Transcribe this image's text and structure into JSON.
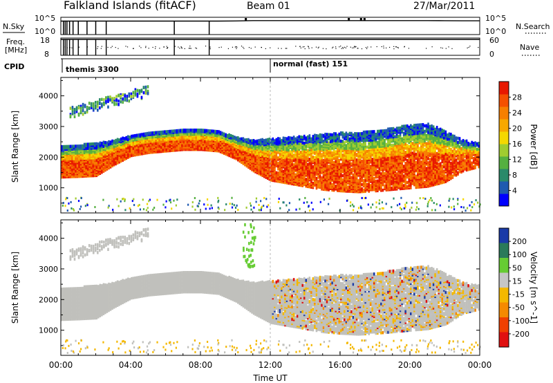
{
  "header": {
    "station": "Falkland Islands (fitACF)",
    "beam": "Beam 01",
    "date": "27/Mar/2011"
  },
  "chart_data": [
    {
      "type": "line",
      "panel": "noise",
      "left_label": "N.Sky",
      "right_label": "N.Search",
      "left_ticks": [
        "10^5",
        "10^0"
      ],
      "right_ticks": [
        "10^5",
        "10^0"
      ],
      "x": [
        0,
        1,
        2,
        3,
        4,
        5,
        6,
        7,
        8,
        9,
        10,
        11,
        12,
        13,
        14,
        15,
        16,
        17,
        18,
        19,
        20,
        21,
        22,
        23,
        24
      ],
      "y_log": [
        4.6,
        4.6,
        4.6,
        4.6,
        4.6,
        4.6,
        4.6,
        4.6,
        4.6,
        4.6,
        4.65,
        4.8,
        4.8,
        4.8,
        4.8,
        4.8,
        4.8,
        4.8,
        4.8,
        4.8,
        4.8,
        4.8,
        4.75,
        4.7,
        4.7
      ],
      "dips_hours": [
        0.15,
        0.25,
        0.35,
        0.5,
        0.7,
        1.0,
        1.5,
        2.0,
        2.6,
        6.5,
        8.5
      ],
      "bumps_hours": [
        10.6,
        16.5,
        17.2,
        17.4
      ],
      "ylim_log": [
        0,
        5
      ]
    },
    {
      "type": "scatter",
      "panel": "frequency",
      "left_label_lines": [
        "Freq.",
        "[MHz]"
      ],
      "right_label": "Nave",
      "left_ticks": [
        "18",
        "8"
      ],
      "right_ticks": [
        "60",
        "0"
      ],
      "freq_mhz": 18,
      "freq_dips_hours": [
        0.15,
        0.25,
        0.35,
        0.5,
        0.7,
        1.0,
        1.5,
        2.0,
        2.6,
        6.5,
        8.5
      ],
      "nave_ylim": [
        0,
        60
      ]
    },
    {
      "type": "table",
      "panel": "cpid",
      "label": "CPID",
      "segments": [
        {
          "start_hour": 0.0,
          "label": "themis 3300"
        },
        {
          "start_hour": 12.0,
          "label": "normal (fast) 151"
        }
      ]
    },
    {
      "type": "heatmap",
      "panel": "power",
      "ylabel": "Slant Range [km]",
      "xlabel": "",
      "yticks": [
        1000,
        2000,
        3000,
        4000
      ],
      "ylim": [
        180,
        4600
      ],
      "colorbar_label": "Power [dB]",
      "colorbar_ticks": [
        4,
        8,
        12,
        16,
        20,
        24,
        28
      ],
      "colorbar_colors": [
        "#0000ff",
        "#1f5ab0",
        "#2a8a6a",
        "#55b040",
        "#a0cc30",
        "#f5d800",
        "#f7a800",
        "#f77f00",
        "#f55000",
        "#e81800"
      ],
      "band_lower_km": [
        1300,
        1320,
        1350,
        1700,
        2000,
        2100,
        2150,
        2200,
        2200,
        2150,
        1900,
        1500,
        1200,
        1100,
        1000,
        900,
        850,
        820,
        850,
        900,
        950,
        1000,
        1150,
        1500,
        1650
      ],
      "band_upper_km": [
        2300,
        2350,
        2400,
        2500,
        2650,
        2750,
        2800,
        2850,
        2850,
        2800,
        2600,
        2500,
        2550,
        2600,
        2650,
        2700,
        2750,
        2750,
        2800,
        2900,
        3000,
        3050,
        2800,
        2500,
        2400
      ],
      "upper_echoes": [
        {
          "start_hour": 0.5,
          "end_hour": 5.0,
          "start_km": 3400,
          "end_km": 4100
        }
      ]
    },
    {
      "type": "heatmap",
      "panel": "velocity",
      "ylabel": "Slant Range [km]",
      "xlabel": "Time UT",
      "xticks": [
        "00:00",
        "04:00",
        "08:00",
        "12:00",
        "16:00",
        "20:00",
        "00:00"
      ],
      "yticks": [
        1000,
        2000,
        3000,
        4000
      ],
      "ylim": [
        180,
        4600
      ],
      "colorbar_label": "Velocity [m s^-1]",
      "colorbar_ticks": [
        200,
        100,
        50,
        15,
        -15,
        -50,
        -100,
        -200
      ],
      "colorbar_colors": [
        "#1a3aa8",
        "#2a7a5a",
        "#66cc33",
        "#c6c6c6",
        "#f4b800",
        "#f58a00",
        "#f04000",
        "#e01010"
      ],
      "ground_scatter_color": "#c0c0bc"
    }
  ]
}
